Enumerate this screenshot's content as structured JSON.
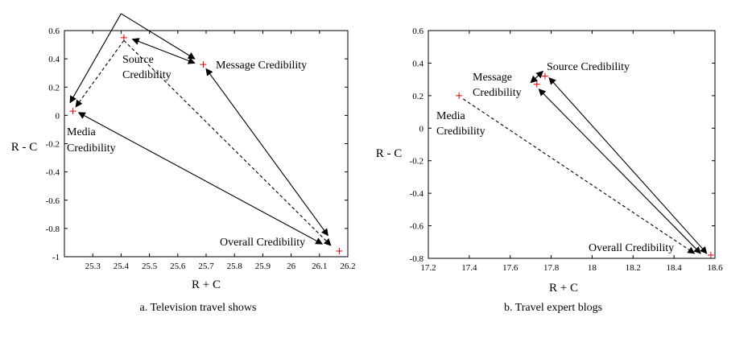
{
  "chart_data": [
    {
      "type": "scatter",
      "caption": "a. Television travel shows",
      "xlabel": "R + C",
      "ylabel": "R - C",
      "xlim": [
        25.2,
        26.2
      ],
      "ylim": [
        -1,
        0.6
      ],
      "xticks": [
        "25.3",
        "25.4",
        "25.5",
        "25.6",
        "25.7",
        "25.8",
        "25.9",
        "26",
        "26.1",
        "26.2"
      ],
      "yticks": [
        "-1",
        "-0.8",
        "-0.6",
        "-0.4",
        "-0.2",
        "0",
        "0.2",
        "0.4",
        "0.6"
      ],
      "grid": false,
      "marker_color": "#e00000",
      "points": [
        {
          "name": "Source Credibility",
          "label_lines": [
            "Source",
            "Credibility"
          ],
          "x": 25.41,
          "y": 0.55
        },
        {
          "name": "Message Credibility",
          "label_lines": [
            "Message Credibility"
          ],
          "x": 25.69,
          "y": 0.36
        },
        {
          "name": "Media Credibility",
          "label_lines": [
            "Media",
            "Credibility"
          ],
          "x": 25.23,
          "y": 0.03
        },
        {
          "name": "Overall Credibility",
          "label_lines": [
            "Overall Credibility"
          ],
          "x": 26.17,
          "y": -0.96
        }
      ],
      "arrows": [
        {
          "from": [
            25.4,
            0.72
          ],
          "to": [
            25.66,
            0.4
          ],
          "style": "solid",
          "heads": "end"
        },
        {
          "from": [
            25.4,
            0.72
          ],
          "to": [
            25.22,
            0.09
          ],
          "style": "solid",
          "heads": "end"
        },
        {
          "from": [
            25.44,
            0.54
          ],
          "to": [
            25.66,
            0.37
          ],
          "style": "solid",
          "heads": "both"
        },
        {
          "from": [
            25.7,
            0.33
          ],
          "to": [
            26.13,
            -0.85
          ],
          "style": "solid",
          "heads": "both"
        },
        {
          "from": [
            25.25,
            0.02
          ],
          "to": [
            26.11,
            -0.91
          ],
          "style": "solid",
          "heads": "both"
        },
        {
          "from": [
            25.41,
            0.53
          ],
          "to": [
            25.24,
            0.06
          ],
          "style": "dashed",
          "heads": "end"
        },
        {
          "from": [
            25.41,
            0.53
          ],
          "to": [
            26.14,
            -0.92
          ],
          "style": "dashed",
          "heads": "end"
        }
      ]
    },
    {
      "type": "scatter",
      "caption": "b. Travel expert blogs",
      "xlabel": "R + C",
      "ylabel": "R - C",
      "xlim": [
        17.2,
        18.6
      ],
      "ylim": [
        -0.8,
        0.6
      ],
      "xticks": [
        "17.2",
        "17.4",
        "17.6",
        "17.8",
        "18",
        "18.2",
        "18.4",
        "18.6"
      ],
      "yticks": [
        "-0.8",
        "-0.6",
        "-0.4",
        "-0.2",
        "0",
        "0.2",
        "0.4",
        "0.6"
      ],
      "grid": false,
      "marker_color": "#e00000",
      "points": [
        {
          "name": "Source Credibility",
          "label_lines": [
            "Source Credibility"
          ],
          "x": 17.77,
          "y": 0.32
        },
        {
          "name": "Message Credibility",
          "label_lines": [
            "Message",
            "Credibility"
          ],
          "x": 17.73,
          "y": 0.27
        },
        {
          "name": "Media Credibility",
          "label_lines": [
            "Media",
            "Credibility"
          ],
          "x": 17.35,
          "y": 0.2
        },
        {
          "name": "Overall Credibility",
          "label_lines": [
            "Overall Credibility"
          ],
          "x": 18.58,
          "y": -0.78
        }
      ],
      "arrows": [
        {
          "from": [
            17.7,
            0.28
          ],
          "to": [
            17.76,
            0.35
          ],
          "style": "solid",
          "heads": "both"
        },
        {
          "from": [
            17.79,
            0.31
          ],
          "to": [
            18.56,
            -0.77
          ],
          "style": "solid",
          "heads": "both"
        },
        {
          "from": [
            17.74,
            0.24
          ],
          "to": [
            18.53,
            -0.77
          ],
          "style": "solid",
          "heads": "both"
        },
        {
          "from": [
            17.37,
            0.18
          ],
          "to": [
            18.5,
            -0.77
          ],
          "style": "dashed",
          "heads": "end"
        }
      ]
    }
  ]
}
